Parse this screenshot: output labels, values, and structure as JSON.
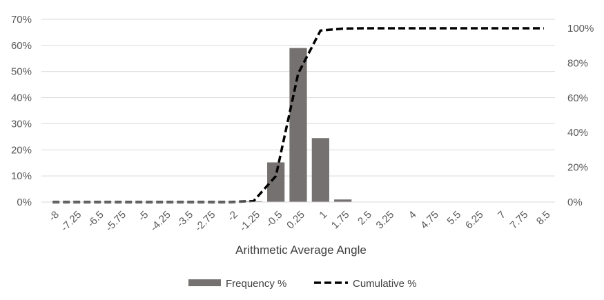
{
  "chart_data": {
    "type": "bar",
    "xlabel": "Arithmetic Average Angle",
    "categories": [
      "-8",
      "-7.25",
      "-6.5",
      "-5.75",
      "-5",
      "-4.25",
      "-3.5",
      "-2.75",
      "-2",
      "-1.25",
      "-0.5",
      "0.25",
      "1",
      "1.75",
      "2.5",
      "3.25",
      "4",
      "4.75",
      "5.5",
      "6.25",
      "7",
      "7.75",
      "8.5"
    ],
    "series": [
      {
        "name": "Frequency %",
        "type": "bar",
        "axis": "left",
        "color": "#767171",
        "values": [
          0,
          0,
          0,
          0,
          0,
          0,
          0,
          0,
          0,
          0.3,
          15.2,
          59,
          24.5,
          1,
          0,
          0,
          0,
          0,
          0,
          0,
          0,
          0,
          0
        ]
      },
      {
        "name": "Cumulative %",
        "type": "line",
        "dash": "dashed",
        "axis": "right",
        "color": "#000000",
        "values": [
          0,
          0,
          0,
          0,
          0,
          0,
          0,
          0,
          0,
          0.5,
          15,
          74,
          98.7,
          99.8,
          100,
          100,
          100,
          100,
          100,
          100,
          100,
          100,
          100
        ]
      }
    ],
    "y_left": {
      "ylim": [
        0,
        70
      ],
      "ticks": [
        "0%",
        "10%",
        "20%",
        "30%",
        "40%",
        "50%",
        "60%",
        "70%"
      ]
    },
    "y_right": {
      "ylim": [
        0,
        100
      ],
      "ticks": [
        "0%",
        "20%",
        "40%",
        "60%",
        "80%",
        "100%"
      ]
    },
    "grid": true,
    "legend_position": "bottom"
  }
}
